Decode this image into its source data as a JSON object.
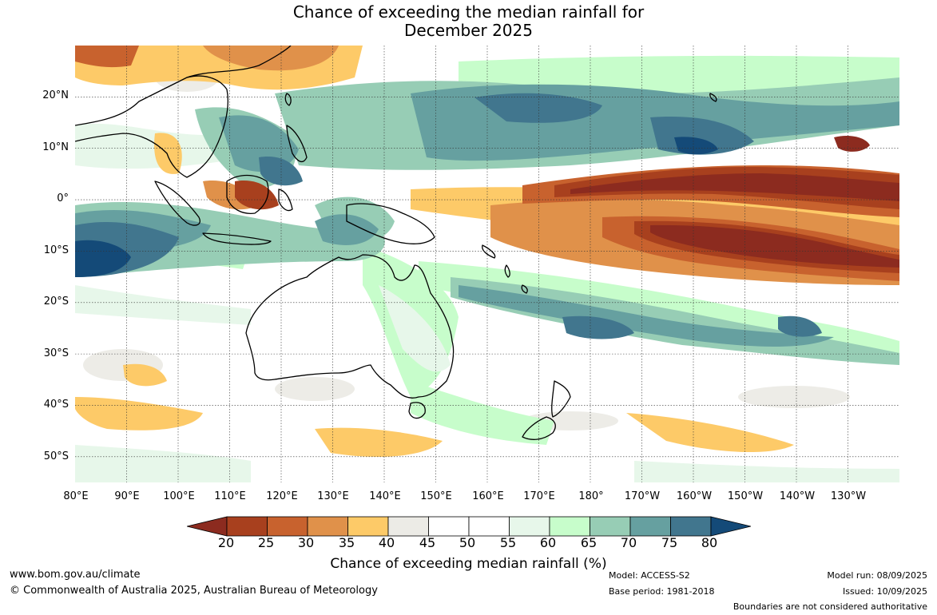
{
  "title": {
    "line1": "Chance of exceeding the median rainfall for",
    "line2": "December 2025"
  },
  "map": {
    "projection": "equirectangular",
    "lon_range": [
      80,
      240
    ],
    "lat_range": [
      -55,
      30
    ],
    "lat_ticks": [
      "20°N",
      "10°N",
      "0°",
      "10°S",
      "20°S",
      "30°S",
      "40°S",
      "50°S"
    ],
    "lon_ticks": [
      "80°E",
      "90°E",
      "100°E",
      "110°E",
      "120°E",
      "130°E",
      "140°E",
      "150°E",
      "160°E",
      "170°E",
      "180°",
      "170°W",
      "160°W",
      "150°W",
      "140°W",
      "130°W"
    ],
    "grid": "dotted",
    "land_outline": "black",
    "regions": [
      {
        "name": "central-pacific-equatorial-dry-band",
        "category": "20-25"
      },
      {
        "name": "south-pacific-dry-band",
        "category": "20-25"
      },
      {
        "name": "indian-ocean-east-wet",
        "category": "75-80"
      },
      {
        "name": "north-pacific-wet-band",
        "category": "70-75"
      },
      {
        "name": "south-pacific-convergence-wet",
        "category": "70-75"
      },
      {
        "name": "australia-east-moist",
        "category": "55-60"
      },
      {
        "name": "southern-ocean-dry-patches",
        "category": "35-40"
      },
      {
        "name": "east-asia-dry",
        "category": "30-35"
      }
    ]
  },
  "legend": {
    "label": "Chance of exceeding median rainfall (%)",
    "ticks": [
      "20",
      "25",
      "30",
      "35",
      "40",
      "45",
      "50",
      "55",
      "60",
      "65",
      "70",
      "75",
      "80"
    ],
    "colors": [
      "#8c2b1f",
      "#a8401e",
      "#c8622e",
      "#e0914a",
      "#fdca68",
      "#ecebe6",
      "#ffffff",
      "#ffffff",
      "#e7f7ea",
      "#c7fdcb",
      "#97cdb5",
      "#66a0a0",
      "#41768e",
      "#144a78"
    ]
  },
  "footer": {
    "url": "www.bom.gov.au/climate",
    "copyright": "© Commonwealth of Australia 2025, Australian Bureau of Meteorology",
    "model": "Model: ACCESS-S2",
    "base_period": "Base period: 1981-2018",
    "model_run": "Model run: 08/09/2025",
    "issued": "Issued: 10/09/2025",
    "disclaimer": "Boundaries are not considered authoritative"
  }
}
